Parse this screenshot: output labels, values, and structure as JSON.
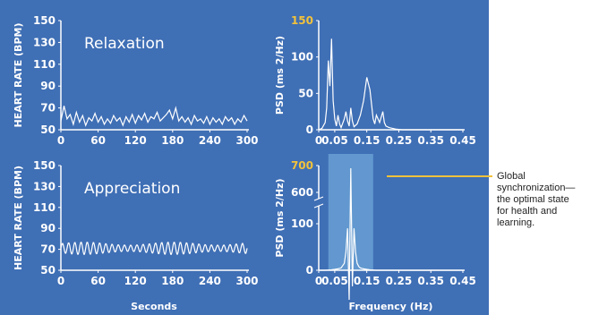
{
  "chart_data": [
    {
      "id": "hr-relaxation",
      "type": "line",
      "title": "Relaxation",
      "ylabel": "HEART RATE (BPM)",
      "xlabel": "",
      "xlim": [
        0,
        300
      ],
      "ylim": [
        50,
        150
      ],
      "xticks": [
        0,
        60,
        120,
        180,
        240,
        300
      ],
      "yticks": [
        50,
        70,
        90,
        110,
        130,
        150
      ],
      "x": [
        0,
        5,
        10,
        15,
        20,
        25,
        30,
        35,
        40,
        45,
        50,
        55,
        60,
        65,
        70,
        75,
        80,
        85,
        90,
        95,
        100,
        105,
        110,
        115,
        120,
        125,
        130,
        135,
        140,
        145,
        150,
        155,
        160,
        165,
        170,
        175,
        180,
        185,
        190,
        195,
        200,
        205,
        210,
        215,
        220,
        225,
        230,
        235,
        240,
        245,
        250,
        255,
        260,
        265,
        270,
        275,
        280,
        285,
        290,
        295,
        300
      ],
      "values": [
        58,
        72,
        60,
        64,
        55,
        66,
        57,
        63,
        54,
        61,
        58,
        65,
        57,
        62,
        55,
        60,
        56,
        63,
        58,
        61,
        54,
        62,
        57,
        64,
        56,
        63,
        59,
        65,
        57,
        62,
        60,
        66,
        58,
        61,
        64,
        68,
        60,
        70,
        58,
        62,
        57,
        61,
        55,
        63,
        58,
        60,
        56,
        62,
        55,
        61,
        57,
        60,
        55,
        62,
        58,
        61,
        55,
        60,
        57,
        63,
        58
      ],
      "color": "#ffffff"
    },
    {
      "id": "psd-relaxation",
      "type": "line",
      "ylabel": "PSD (ms 2/Hz)",
      "xlim": [
        0,
        0.45
      ],
      "ylim": [
        0,
        150
      ],
      "xticks": [
        0,
        0.05,
        0.15,
        0.25,
        0.35,
        0.45
      ],
      "xtick_labels": [
        "0",
        "0.05",
        "0.15",
        "0.25",
        "0.35",
        "0.45"
      ],
      "yticks": [
        0,
        50,
        100,
        150
      ],
      "highlight_tick": "150",
      "highlight_color": "#F2C23B",
      "x": [
        0,
        0.01,
        0.02,
        0.025,
        0.03,
        0.035,
        0.04,
        0.045,
        0.05,
        0.055,
        0.06,
        0.065,
        0.07,
        0.08,
        0.085,
        0.09,
        0.095,
        0.1,
        0.105,
        0.11,
        0.12,
        0.13,
        0.14,
        0.15,
        0.16,
        0.165,
        0.17,
        0.175,
        0.18,
        0.19,
        0.2,
        0.205,
        0.21,
        0.22,
        0.23,
        0.24,
        0.26,
        0.3,
        0.35,
        0.4,
        0.45
      ],
      "values": [
        0,
        2,
        10,
        30,
        95,
        60,
        125,
        40,
        15,
        5,
        20,
        8,
        3,
        15,
        25,
        12,
        5,
        30,
        12,
        4,
        8,
        20,
        40,
        72,
        55,
        35,
        15,
        8,
        20,
        10,
        25,
        10,
        5,
        3,
        2,
        1,
        0,
        0,
        0,
        0,
        0
      ],
      "color": "#ffffff"
    },
    {
      "id": "hr-appreciation",
      "type": "line",
      "title": "Appreciation",
      "ylabel": "HEART RATE (BPM)",
      "xlabel": "Seconds",
      "xlim": [
        0,
        300
      ],
      "ylim": [
        50,
        150
      ],
      "xticks": [
        0,
        60,
        120,
        180,
        240,
        300
      ],
      "yticks": [
        50,
        70,
        90,
        110,
        130,
        150
      ],
      "oscillation": {
        "center": 71,
        "amplitude": 6,
        "period_seconds": 10,
        "samples": 300
      },
      "color": "#ffffff"
    },
    {
      "id": "psd-appreciation",
      "type": "line",
      "ylabel": "PSD (ms 2/Hz)",
      "xlabel": "Frequency (Hz)",
      "xlim": [
        0,
        0.45
      ],
      "axis_break": true,
      "ytick_labels_upper": [
        "600",
        "700"
      ],
      "ytick_labels_lower": [
        "0",
        "100"
      ],
      "highlight_tick": "700",
      "highlight_color": "#F2C23B",
      "highlight_band": [
        0.03,
        0.17
      ],
      "xticks": [
        0,
        0.05,
        0.15,
        0.25,
        0.35,
        0.45
      ],
      "xtick_labels": [
        "0",
        "0.05",
        "0.15",
        "0.25",
        "0.35",
        "0.45"
      ],
      "x": [
        0,
        0.02,
        0.04,
        0.05,
        0.06,
        0.07,
        0.08,
        0.085,
        0.09,
        0.095,
        0.1,
        0.105,
        0.11,
        0.115,
        0.12,
        0.125,
        0.13,
        0.14,
        0.15,
        0.16,
        0.18,
        0.2,
        0.25,
        0.3,
        0.35,
        0.4,
        0.45
      ],
      "values": [
        0,
        0,
        1,
        2,
        3,
        5,
        15,
        40,
        90,
        200,
        690,
        250,
        90,
        40,
        15,
        8,
        5,
        3,
        2,
        1,
        0,
        0,
        0,
        0,
        0,
        0,
        0
      ],
      "color": "#ffffff"
    }
  ],
  "callout": {
    "text_lines": [
      "Global",
      "synchronization—",
      "the optimal state",
      "for health and",
      "learning."
    ],
    "line_color": "#F2C23B"
  }
}
